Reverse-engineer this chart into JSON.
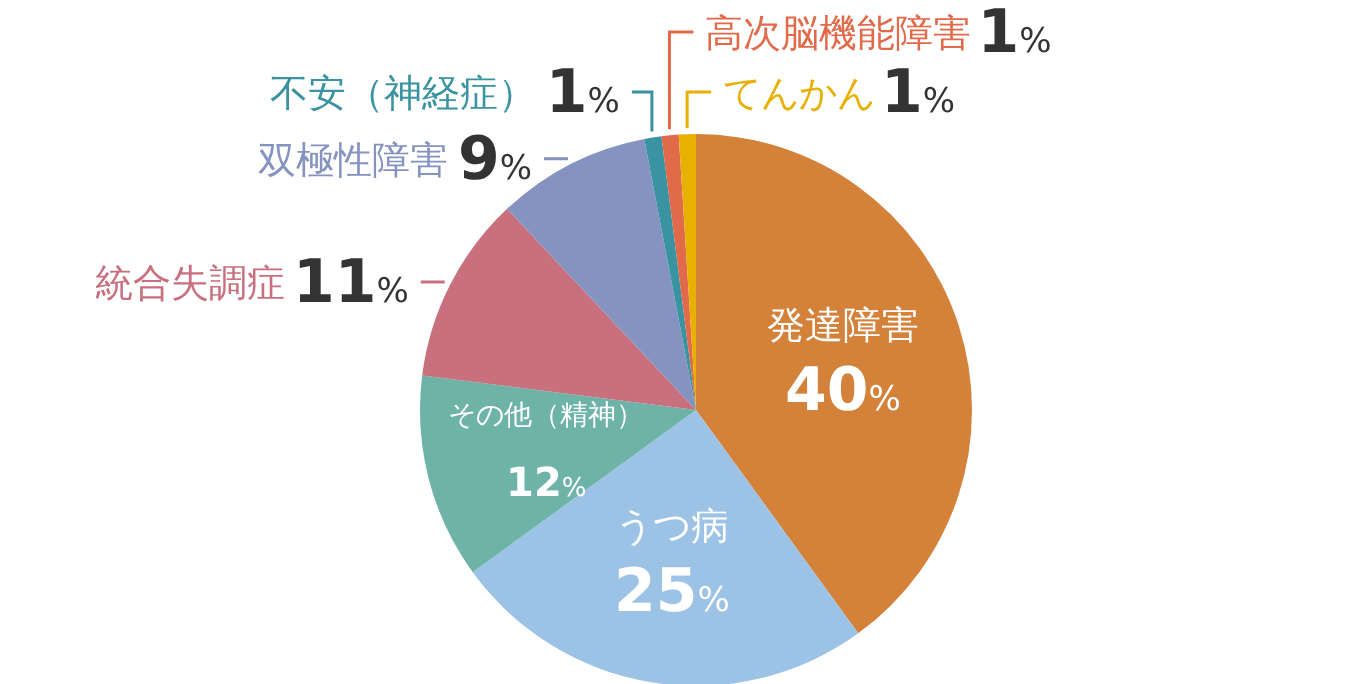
{
  "chart_data": {
    "type": "pie",
    "categories": [
      "発達障害",
      "うつ病",
      "その他（精神）",
      "統合失調症",
      "双極性障害",
      "不安（神経症）",
      "高次脳機能障害",
      "てんかん"
    ],
    "values": [
      40,
      25,
      12,
      11,
      9,
      1,
      1,
      1
    ],
    "value_labels": [
      "40%",
      "25%",
      "12%",
      "11%",
      "9%",
      "1%",
      "1%",
      "1%"
    ],
    "colors": [
      "#d4813a",
      "#9cc3e6",
      "#6db3a8",
      "#c8707e",
      "#8593c1",
      "#3a93a0",
      "#e06a4a",
      "#e8b000"
    ]
  }
}
